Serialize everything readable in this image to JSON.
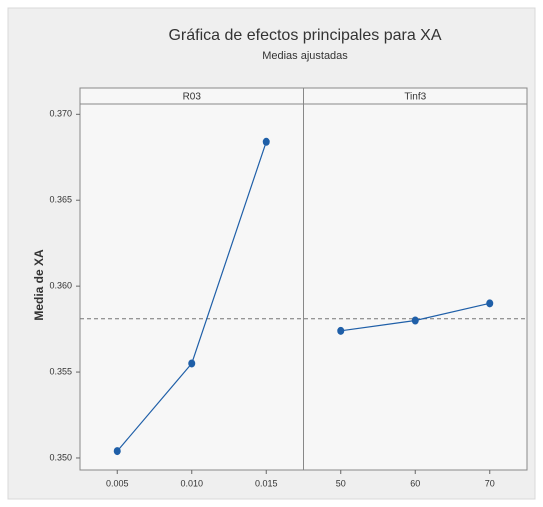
{
  "chart_data": {
    "type": "line",
    "title": "Gráfica de efectos principales para XA",
    "subtitle": "Medias ajustadas",
    "ylabel": "Media de XA",
    "color": "#1f5fa8",
    "ylim": [
      0.3493,
      0.3706
    ],
    "yticks": [
      {
        "value": 0.35,
        "label": "0.350"
      },
      {
        "value": 0.355,
        "label": "0.355"
      },
      {
        "value": 0.36,
        "label": "0.360"
      },
      {
        "value": 0.365,
        "label": "0.365"
      },
      {
        "value": 0.37,
        "label": "0.370"
      }
    ],
    "reference_line": 0.3581,
    "panels": [
      {
        "name": "R03",
        "categories": [
          "0.005",
          "0.010",
          "0.015"
        ],
        "values": [
          0.3504,
          0.3555,
          0.3684
        ]
      },
      {
        "name": "Tinf3",
        "categories": [
          "50",
          "60",
          "70"
        ],
        "values": [
          0.3574,
          0.358,
          0.359
        ]
      }
    ]
  }
}
